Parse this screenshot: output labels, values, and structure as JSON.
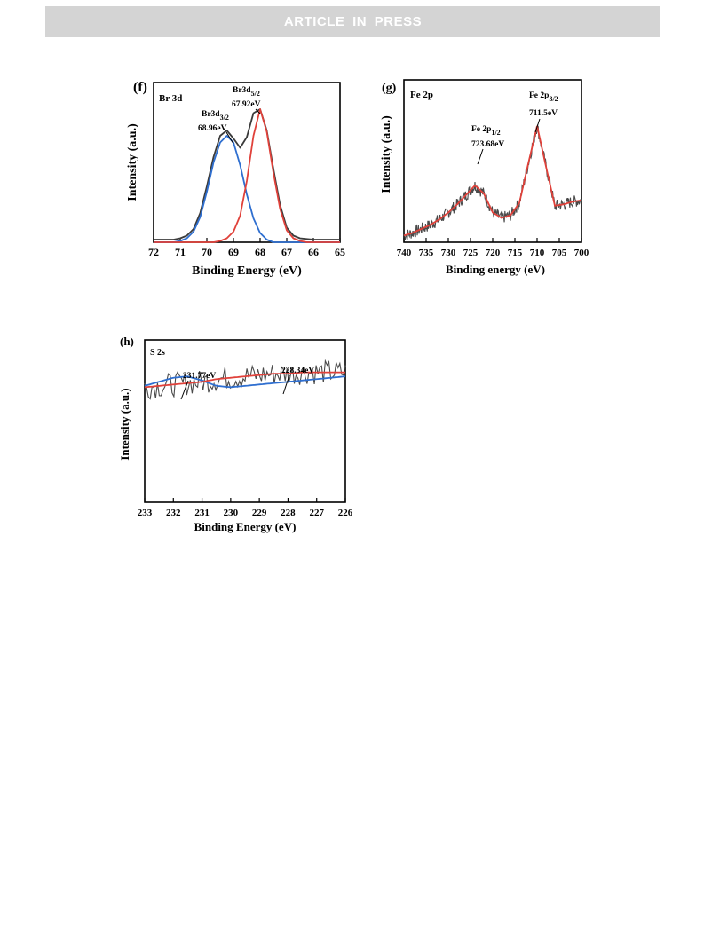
{
  "header": {
    "banner": "ARTICLE IN PRESS"
  },
  "chart_data": [
    {
      "type": "line",
      "panel": "(f)",
      "subtitle": "Br 3d",
      "xlabel": "Binding Energy (eV)",
      "ylabel": "Intensity (a.u.)",
      "xlim": [
        72,
        65
      ],
      "ylim": [
        0,
        1.2
      ],
      "x_reversed": true,
      "yticks_shown": false,
      "xticks": [
        "72",
        "71",
        "70",
        "69",
        "68",
        "67",
        "66",
        "65"
      ],
      "x": [
        72,
        71.75,
        71.5,
        71.25,
        71,
        70.75,
        70.5,
        70.25,
        70,
        69.75,
        69.5,
        69.25,
        69,
        68.75,
        68.5,
        68.25,
        68,
        67.75,
        67.5,
        67.25,
        67,
        66.75,
        66.5,
        66.25,
        66,
        65.75,
        65.5,
        65.25,
        65
      ],
      "series": [
        {
          "color": "#3b3b3b",
          "values": [
            0.02,
            0.02,
            0.02,
            0.02,
            0.03,
            0.05,
            0.1,
            0.22,
            0.42,
            0.64,
            0.8,
            0.84,
            0.78,
            0.71,
            0.79,
            0.97,
            1.0,
            0.84,
            0.55,
            0.28,
            0.11,
            0.05,
            0.03,
            0.025,
            0.02,
            0.02,
            0.02,
            0.02,
            0.02
          ]
        },
        {
          "color": "#2f6fd0",
          "values": [
            0.0,
            0.0,
            0.0,
            0.0,
            0.01,
            0.03,
            0.08,
            0.19,
            0.38,
            0.6,
            0.75,
            0.8,
            0.75,
            0.58,
            0.36,
            0.18,
            0.07,
            0.02,
            0.0,
            0.0,
            0.0,
            0.0,
            0.0,
            0.0,
            0.0,
            0.0,
            0.0,
            0.0,
            0.0
          ]
        },
        {
          "color": "#e0413a",
          "values": [
            0.0,
            0.0,
            0.0,
            0.0,
            0.0,
            0.0,
            0.0,
            0.0,
            0.0,
            0.0,
            0.01,
            0.03,
            0.08,
            0.2,
            0.46,
            0.8,
            1.0,
            0.83,
            0.52,
            0.25,
            0.09,
            0.03,
            0.01,
            0.0,
            0.0,
            0.0,
            0.0,
            0.0,
            0.0
          ]
        }
      ],
      "annotations": [
        {
          "label": "Br3d",
          "sub": "5/2",
          "value": "67.92eV",
          "x": 67.92
        },
        {
          "label": "Br3d",
          "sub": "3/2",
          "value": "68.96eV",
          "x": 68.96
        }
      ]
    },
    {
      "type": "line",
      "panel": "(g)",
      "subtitle": "Fe 2p",
      "xlabel": "Binding energy (eV)",
      "ylabel": "Intensity (a.u.)",
      "xlim": [
        740,
        700
      ],
      "ylim": [
        0,
        1.2
      ],
      "x_reversed": true,
      "yticks_shown": false,
      "xticks": [
        "740",
        "735",
        "730",
        "725",
        "720",
        "715",
        "710",
        "705",
        "700"
      ],
      "fit_x": [
        740,
        738,
        736,
        734,
        732,
        730,
        728,
        726,
        724,
        722,
        720,
        718,
        716,
        714,
        712,
        710,
        708,
        706,
        704,
        702,
        700
      ],
      "series": [
        {
          "color": "#e0413a",
          "values": [
            0.05,
            0.07,
            0.1,
            0.13,
            0.17,
            0.22,
            0.28,
            0.35,
            0.42,
            0.36,
            0.22,
            0.18,
            0.2,
            0.29,
            0.58,
            0.86,
            0.56,
            0.27,
            0.28,
            0.3,
            0.31
          ]
        }
      ],
      "annotations": [
        {
          "label": "Fe 2p",
          "sub": "1/2",
          "value": "723.68eV",
          "x": 723.68
        },
        {
          "label": "Fe 2p",
          "sub": "3/2",
          "value": "711.5eV",
          "x": 711.5
        }
      ]
    },
    {
      "type": "line",
      "panel": "(h)",
      "subtitle": "S 2s",
      "xlabel": "Binding Energy (eV)",
      "ylabel": "Intensity (a.u.)",
      "xlim": [
        233,
        226
      ],
      "ylim": [
        0,
        1.2
      ],
      "x_reversed": true,
      "yticks_shown": false,
      "xticks": [
        "233",
        "232",
        "231",
        "230",
        "229",
        "228",
        "227",
        "226"
      ],
      "fit_x": [
        233,
        232.5,
        232,
        231.5,
        231,
        230.5,
        230,
        229.5,
        229,
        228.5,
        228,
        227.5,
        227,
        226.5,
        226
      ],
      "series": [
        {
          "color": "#2f6fd0",
          "values": [
            0.86,
            0.89,
            0.92,
            0.93,
            0.9,
            0.86,
            0.85,
            0.86,
            0.87,
            0.88,
            0.89,
            0.9,
            0.91,
            0.92,
            0.93
          ]
        },
        {
          "color": "#e0413a",
          "values": [
            0.85,
            0.86,
            0.87,
            0.88,
            0.89,
            0.91,
            0.92,
            0.93,
            0.94,
            0.95,
            0.95,
            0.96,
            0.96,
            0.96,
            0.96
          ]
        }
      ],
      "annotations": [
        {
          "value": "231.77eV",
          "x": 231.77
        },
        {
          "value": "228.34eV",
          "x": 228.34
        }
      ]
    }
  ]
}
